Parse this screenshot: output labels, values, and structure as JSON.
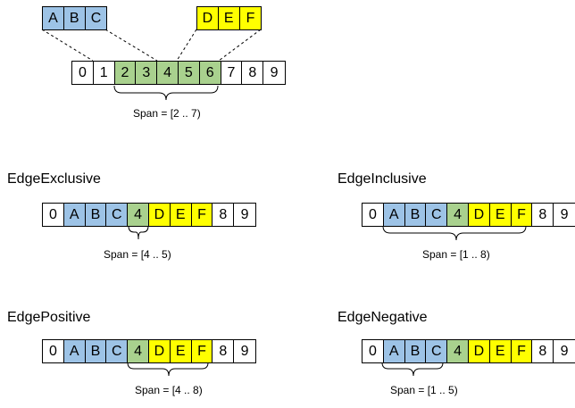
{
  "colors": {
    "blue": "#9dc3e6",
    "green": "#a9d18e",
    "yellow": "#ffff00",
    "white": "#ffffff",
    "line": "#000000"
  },
  "top": {
    "abc": [
      {
        "text": "A",
        "color": "blue"
      },
      {
        "text": "B",
        "color": "blue"
      },
      {
        "text": "C",
        "color": "blue"
      }
    ],
    "def": [
      {
        "text": "D",
        "color": "yellow"
      },
      {
        "text": "E",
        "color": "yellow"
      },
      {
        "text": "F",
        "color": "yellow"
      }
    ],
    "row": [
      {
        "text": "0",
        "color": "white"
      },
      {
        "text": "1",
        "color": "white"
      },
      {
        "text": "2",
        "color": "green"
      },
      {
        "text": "3",
        "color": "green"
      },
      {
        "text": "4",
        "color": "green"
      },
      {
        "text": "5",
        "color": "green"
      },
      {
        "text": "6",
        "color": "green"
      },
      {
        "text": "7",
        "color": "white"
      },
      {
        "text": "8",
        "color": "white"
      },
      {
        "text": "9",
        "color": "white"
      }
    ],
    "span_label": "Span = [2 .. 7)"
  },
  "sections": [
    {
      "title": "EdgeExclusive",
      "cells": [
        {
          "text": "0",
          "color": "white"
        },
        {
          "text": "A",
          "color": "blue"
        },
        {
          "text": "B",
          "color": "blue"
        },
        {
          "text": "C",
          "color": "blue"
        },
        {
          "text": "4",
          "color": "green"
        },
        {
          "text": "D",
          "color": "yellow"
        },
        {
          "text": "E",
          "color": "yellow"
        },
        {
          "text": "F",
          "color": "yellow"
        },
        {
          "text": "8",
          "color": "white"
        },
        {
          "text": "9",
          "color": "white"
        }
      ],
      "span_label": "Span = [4 .. 5)"
    },
    {
      "title": "EdgeInclusive",
      "cells": [
        {
          "text": "0",
          "color": "white"
        },
        {
          "text": "A",
          "color": "blue"
        },
        {
          "text": "B",
          "color": "blue"
        },
        {
          "text": "C",
          "color": "blue"
        },
        {
          "text": "4",
          "color": "green"
        },
        {
          "text": "D",
          "color": "yellow"
        },
        {
          "text": "E",
          "color": "yellow"
        },
        {
          "text": "F",
          "color": "yellow"
        },
        {
          "text": "8",
          "color": "white"
        },
        {
          "text": "9",
          "color": "white"
        }
      ],
      "span_label": "Span = [1 .. 8)"
    },
    {
      "title": "EdgePositive",
      "cells": [
        {
          "text": "0",
          "color": "white"
        },
        {
          "text": "A",
          "color": "blue"
        },
        {
          "text": "B",
          "color": "blue"
        },
        {
          "text": "C",
          "color": "blue"
        },
        {
          "text": "4",
          "color": "green"
        },
        {
          "text": "D",
          "color": "yellow"
        },
        {
          "text": "E",
          "color": "yellow"
        },
        {
          "text": "F",
          "color": "yellow"
        },
        {
          "text": "8",
          "color": "white"
        },
        {
          "text": "9",
          "color": "white"
        }
      ],
      "span_label": "Span = [4 .. 8)"
    },
    {
      "title": "EdgeNegative",
      "cells": [
        {
          "text": "0",
          "color": "white"
        },
        {
          "text": "A",
          "color": "blue"
        },
        {
          "text": "B",
          "color": "blue"
        },
        {
          "text": "C",
          "color": "blue"
        },
        {
          "text": "4",
          "color": "green"
        },
        {
          "text": "D",
          "color": "yellow"
        },
        {
          "text": "E",
          "color": "yellow"
        },
        {
          "text": "F",
          "color": "yellow"
        },
        {
          "text": "8",
          "color": "white"
        },
        {
          "text": "9",
          "color": "white"
        }
      ],
      "span_label": "Span = [1 .. 5)"
    }
  ]
}
